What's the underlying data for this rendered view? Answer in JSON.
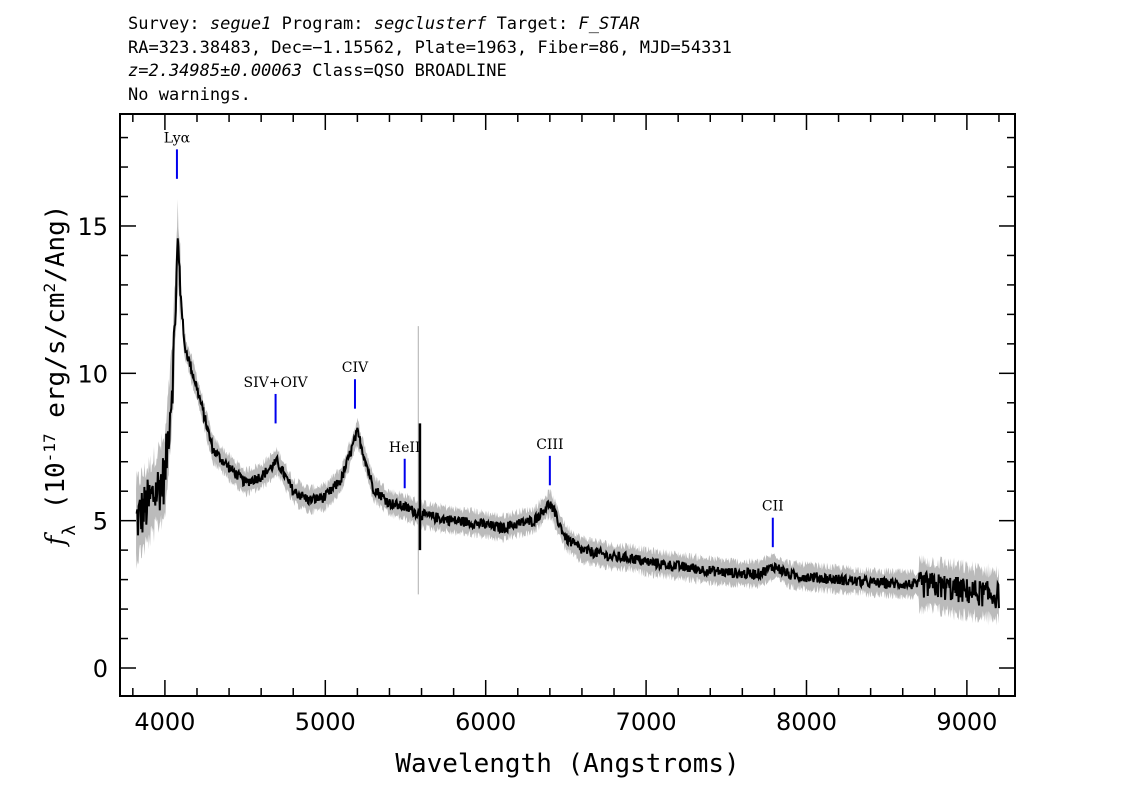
{
  "header": {
    "line1": {
      "survey_label": "Survey:",
      "survey": "segue1",
      "program_label": "Program:",
      "program": "segclusterf",
      "target_label": "Target:",
      "target": "F_STAR"
    },
    "line2": "RA=323.38483, Dec=−1.15562, Plate=1963, Fiber=86, MJD=54331",
    "line3": {
      "redshift": "z=2.34985±0.00063",
      "class": "Class=QSO BROADLINE"
    },
    "line4": "No warnings."
  },
  "chart_data": {
    "type": "line",
    "xlabel": "Wavelength (Angstroms)",
    "ylabel": "f_λ (10^-17 erg/s/cm^2/Ang)",
    "xlim": [
      3720,
      9300
    ],
    "ylim": [
      -0.95,
      18.8
    ],
    "x_ticks": [
      4000,
      5000,
      6000,
      7000,
      8000,
      9000
    ],
    "x_tick_labels": [
      "4000",
      "5000",
      "6000",
      "7000",
      "8000",
      "9000"
    ],
    "y_ticks": [
      0,
      5,
      10,
      15
    ],
    "y_tick_labels": [
      "0",
      "5",
      "10",
      "15"
    ],
    "grid": false,
    "series": [
      {
        "color": "#000000",
        "continuum": [
          [
            3820,
            5.0
          ],
          [
            3900,
            5.6
          ],
          [
            4000,
            6.5
          ],
          [
            4050,
            10.0
          ],
          [
            4080,
            14.3
          ],
          [
            4120,
            11.0
          ],
          [
            4200,
            9.5
          ],
          [
            4300,
            7.4
          ],
          [
            4400,
            6.8
          ],
          [
            4500,
            6.3
          ],
          [
            4600,
            6.5
          ],
          [
            4700,
            7.0
          ],
          [
            4800,
            6.0
          ],
          [
            4900,
            5.7
          ],
          [
            5000,
            5.8
          ],
          [
            5100,
            6.4
          ],
          [
            5200,
            8.0
          ],
          [
            5300,
            6.1
          ],
          [
            5400,
            5.6
          ],
          [
            5500,
            5.45
          ],
          [
            5600,
            5.2
          ],
          [
            5700,
            5.1
          ],
          [
            5800,
            5.0
          ],
          [
            5900,
            4.95
          ],
          [
            6000,
            4.85
          ],
          [
            6100,
            4.75
          ],
          [
            6200,
            4.9
          ],
          [
            6300,
            5.0
          ],
          [
            6400,
            5.6
          ],
          [
            6500,
            4.4
          ],
          [
            6600,
            4.0
          ],
          [
            6700,
            3.9
          ],
          [
            6800,
            3.75
          ],
          [
            6900,
            3.75
          ],
          [
            7000,
            3.6
          ],
          [
            7200,
            3.45
          ],
          [
            7400,
            3.3
          ],
          [
            7600,
            3.2
          ],
          [
            7700,
            3.2
          ],
          [
            7800,
            3.45
          ],
          [
            7900,
            3.15
          ],
          [
            8000,
            3.1
          ],
          [
            8200,
            3.0
          ],
          [
            8400,
            2.9
          ],
          [
            8600,
            2.85
          ],
          [
            8800,
            2.8
          ],
          [
            9000,
            2.6
          ],
          [
            9200,
            2.45
          ]
        ]
      },
      {
        "color": "#bbbbbb",
        "name": "error"
      }
    ],
    "spikes": [
      {
        "x": 5580,
        "low": 2.5,
        "high": 11.6,
        "color": "#bbbbbb"
      },
      {
        "x": 5590,
        "low": 4.0,
        "high": 8.3,
        "color": "#000000"
      }
    ],
    "annotations": [
      {
        "label": "Lyα",
        "x": 4075,
        "line_bottom": 16.6,
        "line_top": 17.6
      },
      {
        "label": "SIV+OIV",
        "x": 4690,
        "line_bottom": 8.3,
        "line_top": 9.3
      },
      {
        "label": "CIV",
        "x": 5185,
        "line_bottom": 8.8,
        "line_top": 9.8
      },
      {
        "label": "HeII",
        "x": 5495,
        "line_bottom": 6.1,
        "line_top": 7.1
      },
      {
        "label": "CIII",
        "x": 6400,
        "line_bottom": 6.2,
        "line_top": 7.2
      },
      {
        "label": "CII",
        "x": 7790,
        "line_bottom": 4.1,
        "line_top": 5.1
      }
    ],
    "annotation_color": "#0000ee"
  }
}
